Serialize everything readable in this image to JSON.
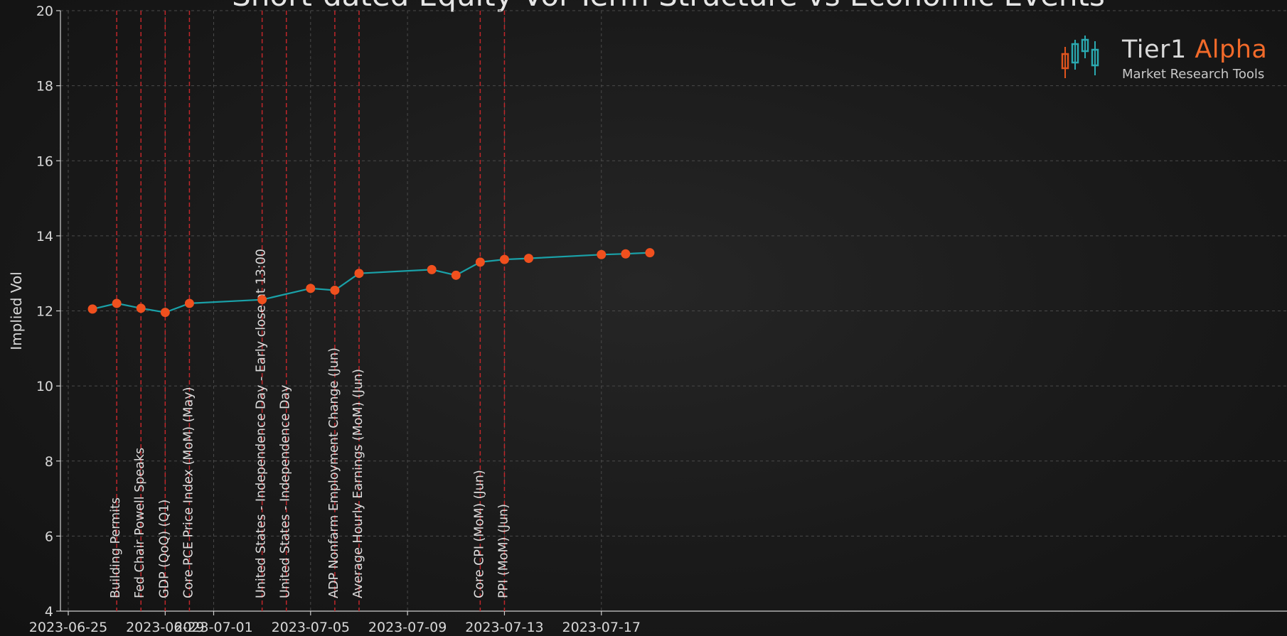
{
  "chart_data": {
    "type": "line",
    "title": "Short-dated Equity Vol Term Structure vs Economic Events",
    "ylabel": "Implied Vol",
    "xlabel": "",
    "ylim": [
      4,
      20
    ],
    "xlim": [
      "2023-06-25",
      "2023-07-20"
    ],
    "grid": true,
    "y_ticks": [
      "4",
      "6",
      "8",
      "10",
      "12",
      "14",
      "16",
      "18",
      "20"
    ],
    "x_ticks": [
      "2023-06-25",
      "2023-06-29",
      "2023-07-01",
      "2023-07-05",
      "2023-07-09",
      "2023-07-13",
      "2023-07-17"
    ],
    "series": [
      {
        "x": [
          "2023-06-26",
          "2023-06-27",
          "2023-06-28",
          "2023-06-29",
          "2023-06-30",
          "2023-07-03",
          "2023-07-05",
          "2023-07-06",
          "2023-07-07",
          "2023-07-10",
          "2023-07-11",
          "2023-07-12",
          "2023-07-13",
          "2023-07-14",
          "2023-07-17",
          "2023-07-18",
          "2023-07-19"
        ],
        "y": [
          12.05,
          12.2,
          12.07,
          11.96,
          12.2,
          12.3,
          12.6,
          12.55,
          13.0,
          13.1,
          12.95,
          13.3,
          13.37,
          13.4,
          13.5,
          13.52,
          13.55
        ]
      }
    ],
    "events": [
      {
        "date": "2023-06-27",
        "label": "Building Permits"
      },
      {
        "date": "2023-06-28",
        "label": "Fed Chair Powell Speaks"
      },
      {
        "date": "2023-06-29",
        "label": "GDP (QoQ)  (Q1)"
      },
      {
        "date": "2023-06-30",
        "label": "Core PCE Price Index (MoM)  (May)"
      },
      {
        "date": "2023-07-03",
        "label": "United States - Independence Day - Early close at 13:00"
      },
      {
        "date": "2023-07-04",
        "label": "United States - Independence Day"
      },
      {
        "date": "2023-07-06",
        "label": "ADP Nonfarm Employment Change  (Jun)"
      },
      {
        "date": "2023-07-07",
        "label": "Average Hourly Earnings (MoM)  (Jun)"
      },
      {
        "date": "2023-07-12",
        "label": "Core CPI (MoM)  (Jun)"
      },
      {
        "date": "2023-07-13",
        "label": "PPI (MoM)  (Jun)"
      }
    ],
    "colors": {
      "line": "#1aa1a8",
      "marker": "#f0501e",
      "event_line": "#c0262a",
      "text": "#d8d8d8"
    }
  },
  "logo": {
    "name_part1": "Tier1",
    "name_part2": "Alpha",
    "tagline": "Market  Research Tools"
  }
}
